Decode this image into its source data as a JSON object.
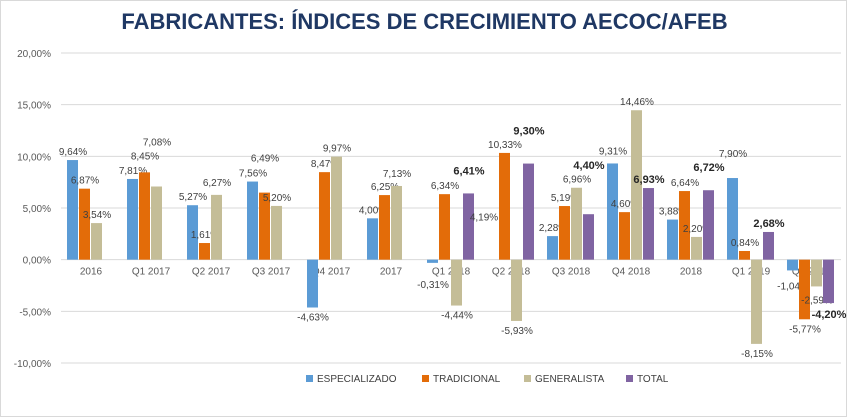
{
  "chart_data": {
    "type": "bar",
    "title": "FABRICANTES: ÍNDICES DE CRECIMIENTO AECOC/AFEB",
    "categories": [
      "2016",
      "Q1 2017",
      "Q2 2017",
      "Q3 2017",
      "Q4 2017",
      "2017",
      "Q1 2018",
      "Q2 2018",
      "Q3 2018",
      "Q4 2018",
      "2018",
      "Q1 2019",
      "Q2 2019"
    ],
    "ylim": [
      -10,
      20
    ],
    "yticks": [
      "-10,00%",
      "-5,00%",
      "0,00%",
      "5,00%",
      "10,00%",
      "15,00%",
      "20,00%"
    ],
    "grid": true,
    "legend": "bottom",
    "series": [
      {
        "name": "ESPECIALIZADO",
        "color": "#5b9bd5",
        "values": [
          9.64,
          7.81,
          5.27,
          7.56,
          -4.63,
          4.0,
          -0.31,
          null,
          2.28,
          9.31,
          3.88,
          7.9,
          -1.04
        ]
      },
      {
        "name": "TRADICIONAL",
        "color": "#e36c09",
        "values": [
          6.87,
          8.45,
          1.61,
          6.49,
          8.47,
          6.25,
          6.34,
          10.33,
          5.19,
          4.6,
          6.64,
          0.84,
          -5.77
        ]
      },
      {
        "name": "GENERALISTA",
        "color": "#c4bd97",
        "values": [
          3.54,
          7.08,
          6.27,
          5.2,
          9.97,
          7.13,
          -4.44,
          -5.93,
          6.96,
          14.46,
          2.2,
          -8.15,
          -2.59
        ]
      },
      {
        "name": "TOTAL",
        "color": "#8064a2",
        "values": [
          null,
          null,
          null,
          null,
          null,
          null,
          6.41,
          9.3,
          4.4,
          6.93,
          6.72,
          2.68,
          -4.2
        ]
      }
    ],
    "annotations": [
      "4,19%"
    ]
  }
}
